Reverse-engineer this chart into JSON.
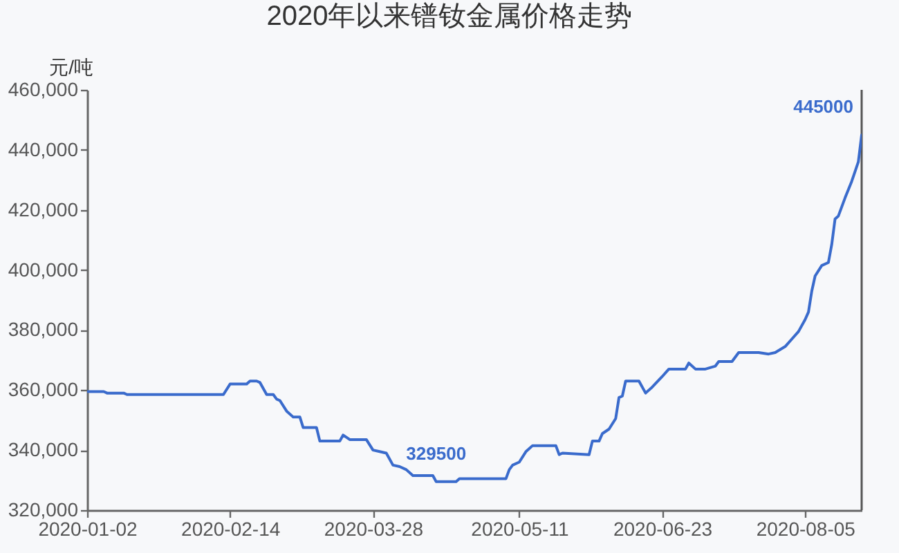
{
  "chart_data": {
    "type": "line",
    "title": "2020年以来镨钕金属价格走势",
    "ylabel": "元/吨",
    "x": [
      "2020-01-02",
      "2020-01-07",
      "2020-01-08",
      "2020-01-13",
      "2020-01-14",
      "2020-02-12",
      "2020-02-14",
      "2020-02-19",
      "2020-02-20",
      "2020-02-22",
      "2020-02-23",
      "2020-02-25",
      "2020-02-27",
      "2020-02-28",
      "2020-02-29",
      "2020-03-02",
      "2020-03-04",
      "2020-03-06",
      "2020-03-07",
      "2020-03-11",
      "2020-03-12",
      "2020-03-18",
      "2020-03-19",
      "2020-03-21",
      "2020-03-26",
      "2020-03-28",
      "2020-03-30",
      "2020-04-01",
      "2020-04-03",
      "2020-04-05",
      "2020-04-07",
      "2020-04-09",
      "2020-04-15",
      "2020-04-16",
      "2020-04-22",
      "2020-04-23",
      "2020-05-07",
      "2020-05-08",
      "2020-05-09",
      "2020-05-11",
      "2020-05-13",
      "2020-05-15",
      "2020-05-22",
      "2020-05-23",
      "2020-05-24",
      "2020-06-01",
      "2020-06-02",
      "2020-06-04",
      "2020-06-05",
      "2020-06-07",
      "2020-06-09",
      "2020-06-10",
      "2020-06-11",
      "2020-06-12",
      "2020-06-16",
      "2020-06-18",
      "2020-06-20",
      "2020-06-23",
      "2020-06-25",
      "2020-06-30",
      "2020-07-01",
      "2020-07-03",
      "2020-07-06",
      "2020-07-09",
      "2020-07-10",
      "2020-07-14",
      "2020-07-16",
      "2020-07-22",
      "2020-07-25",
      "2020-07-27",
      "2020-07-30",
      "2020-08-01",
      "2020-08-03",
      "2020-08-05",
      "2020-08-06",
      "2020-08-07",
      "2020-08-08",
      "2020-08-10",
      "2020-08-12",
      "2020-08-13",
      "2020-08-14",
      "2020-08-15",
      "2020-08-17",
      "2020-08-19",
      "2020-08-21",
      "2020-08-22"
    ],
    "series": [
      {
        "color": "#3a6bcc",
        "values": [
          359500,
          359500,
          359000,
          359000,
          358500,
          358500,
          362000,
          362000,
          363000,
          363000,
          362500,
          358500,
          358500,
          357000,
          356500,
          353000,
          351000,
          351000,
          347500,
          347500,
          343000,
          343000,
          345000,
          343500,
          343500,
          340000,
          339500,
          339000,
          335000,
          334500,
          333500,
          331500,
          331500,
          329500,
          329500,
          330500,
          330500,
          333500,
          335000,
          336000,
          339500,
          341500,
          341500,
          338500,
          339000,
          338500,
          343000,
          343000,
          345500,
          347000,
          350500,
          357500,
          358000,
          363000,
          363000,
          359000,
          361000,
          364500,
          367000,
          367000,
          369000,
          367000,
          367000,
          368000,
          369500,
          369500,
          372500,
          372500,
          372000,
          372500,
          374500,
          377000,
          379500,
          383500,
          386000,
          393000,
          398000,
          401500,
          402500,
          408500,
          417000,
          418000,
          424000,
          429500,
          436000,
          445000
        ]
      }
    ],
    "xlim": [
      "2020-01-02",
      "2020-08-22"
    ],
    "xticks": [
      "2020-01-02",
      "2020-02-14",
      "2020-03-28",
      "2020-05-11",
      "2020-06-23",
      "2020-08-05"
    ],
    "ylim": [
      320000,
      460000
    ],
    "yticks": [
      {
        "value": 320000,
        "label": "320,000"
      },
      {
        "value": 340000,
        "label": "340,000"
      },
      {
        "value": 360000,
        "label": "360,000"
      },
      {
        "value": 380000,
        "label": "380,000"
      },
      {
        "value": 400000,
        "label": "400,000"
      },
      {
        "value": 420000,
        "label": "420,000"
      },
      {
        "value": 440000,
        "label": "440,000"
      },
      {
        "value": 460000,
        "label": "460,000"
      }
    ],
    "ref_lines": [
      {
        "axis": "x",
        "value": "2020-08-22",
        "label": null,
        "color": "#555555"
      }
    ],
    "annotations": [
      {
        "text": "329500",
        "x": "2020-04-16",
        "y": 329500
      },
      {
        "text": "445000",
        "x": "2020-08-22",
        "y": 445000
      }
    ]
  }
}
